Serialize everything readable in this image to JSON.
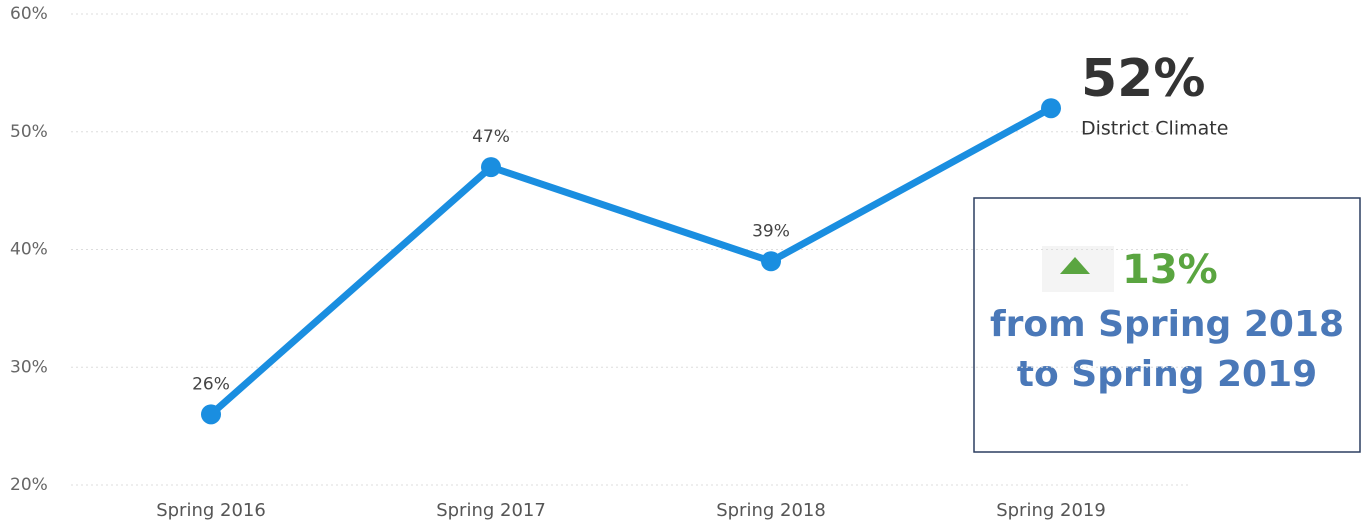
{
  "chart_data": {
    "type": "line",
    "categories": [
      "Spring 2016",
      "Spring 2017",
      "Spring 2018",
      "Spring 2019"
    ],
    "series": [
      {
        "name": "District Climate",
        "color": "#1a8ee0",
        "values": [
          26,
          47,
          39,
          52
        ],
        "value_labels": [
          "26%",
          "47%",
          "39%",
          "52%"
        ]
      }
    ],
    "ylim": [
      20,
      60
    ],
    "yticks": [
      {
        "value": 20,
        "label": "20%"
      },
      {
        "value": 30,
        "label": "30%"
      },
      {
        "value": 40,
        "label": "40%"
      },
      {
        "value": 50,
        "label": "50%"
      },
      {
        "value": 60,
        "label": "60%"
      }
    ],
    "grid": true,
    "annotation": {
      "change": "13%",
      "change_color": "#5aa540",
      "lines": [
        "from Spring 2018",
        "to Spring 2019"
      ],
      "text_color": "#4a78b8"
    }
  }
}
